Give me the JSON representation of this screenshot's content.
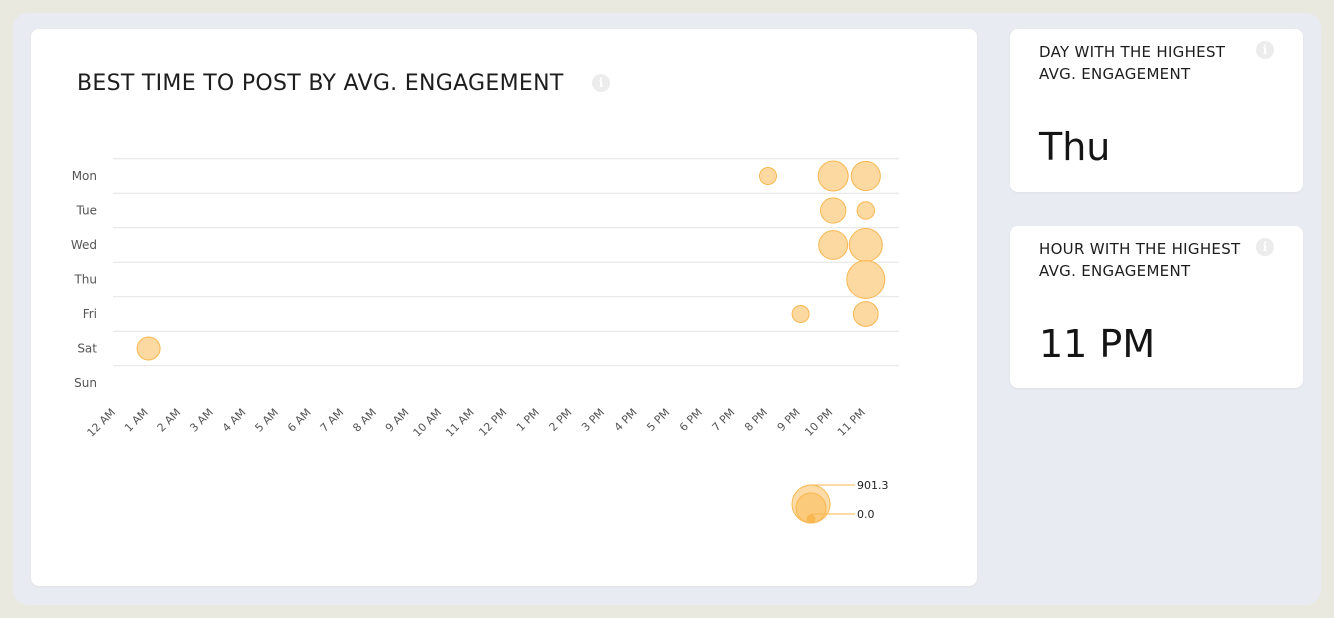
{
  "main_card": {
    "title": "BEST TIME TO POST BY AVG. ENGAGEMENT"
  },
  "day_card": {
    "title": "DAY WITH THE HIGHEST AVG. ENGAGEMENT",
    "value": "Thu"
  },
  "hour_card": {
    "title": "HOUR WITH THE HIGHEST AVG. ENGAGEMENT",
    "value": "11 PM"
  },
  "colors": {
    "bubble_fill": "#fdd598",
    "bubble_stroke": "#f8b74f",
    "gridline": "#e3e3e3",
    "text": "#555555"
  },
  "chart_data": {
    "type": "scatter",
    "subtype": "bubble",
    "title": "BEST TIME TO POST BY AVG. ENGAGEMENT",
    "x_categories": [
      "12 AM",
      "1 AM",
      "2 AM",
      "3 AM",
      "4 AM",
      "5 AM",
      "6 AM",
      "7 AM",
      "8 AM",
      "9 AM",
      "10 AM",
      "11 AM",
      "12 PM",
      "1 PM",
      "2 PM",
      "3 PM",
      "4 PM",
      "5 PM",
      "6 PM",
      "7 PM",
      "8 PM",
      "9 PM",
      "10 PM",
      "11 PM"
    ],
    "y_categories": [
      "Mon",
      "Tue",
      "Wed",
      "Thu",
      "Fri",
      "Sat",
      "Sun"
    ],
    "points": [
      {
        "day": "Mon",
        "hour": "8 PM",
        "value": 180
      },
      {
        "day": "Mon",
        "hour": "10 PM",
        "value": 560
      },
      {
        "day": "Mon",
        "hour": "11 PM",
        "value": 530
      },
      {
        "day": "Tue",
        "hour": "10 PM",
        "value": 400
      },
      {
        "day": "Tue",
        "hour": "11 PM",
        "value": 190
      },
      {
        "day": "Wed",
        "hour": "10 PM",
        "value": 520
      },
      {
        "day": "Wed",
        "hour": "11 PM",
        "value": 680
      },
      {
        "day": "Thu",
        "hour": "11 PM",
        "value": 901.3
      },
      {
        "day": "Fri",
        "hour": "9 PM",
        "value": 180
      },
      {
        "day": "Fri",
        "hour": "11 PM",
        "value": 380
      },
      {
        "day": "Sat",
        "hour": "1 AM",
        "value": 330
      }
    ],
    "size_legend": {
      "max_label": "901.3",
      "min_label": "0.0",
      "max": 901.3,
      "min": 0.0
    }
  }
}
